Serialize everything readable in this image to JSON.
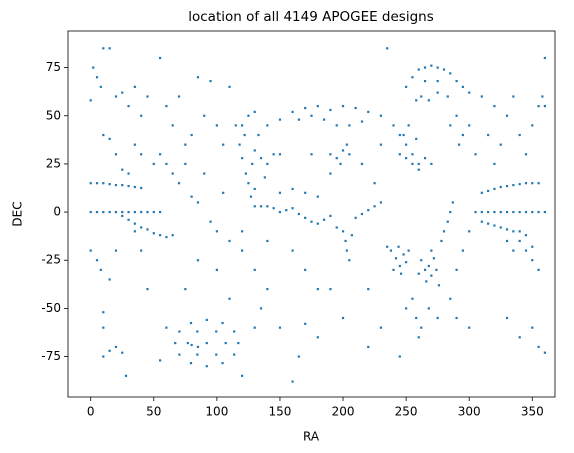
{
  "chart_data": {
    "type": "scatter",
    "title": "location of all 4149 APOGEE designs",
    "x_label": "RA",
    "y_label": "DEC",
    "color": "#1f77b4",
    "xlim": [
      -18,
      368
    ],
    "xticks": [
      0,
      50,
      100,
      150,
      200,
      250,
      300,
      350
    ],
    "ylim": [
      -96,
      94
    ],
    "yticks": [
      -75,
      -50,
      -25,
      0,
      25,
      50,
      75
    ],
    "x": [
      0,
      5,
      10,
      15,
      20,
      25,
      30,
      35,
      40,
      45,
      50,
      55,
      0,
      5,
      10,
      15,
      20,
      25,
      30,
      35,
      40,
      25,
      30,
      35,
      40,
      45,
      50,
      55,
      60,
      65,
      305,
      310,
      315,
      320,
      325,
      330,
      335,
      340,
      345,
      350,
      355,
      360,
      310,
      315,
      320,
      325,
      330,
      335,
      340,
      345,
      350,
      355,
      310,
      315,
      320,
      325,
      330,
      335,
      340,
      345,
      350,
      355,
      330,
      335,
      340,
      345,
      350,
      117,
      113.7,
      104.5,
      92,
      79.5,
      70.3,
      67,
      70.3,
      79.5,
      92,
      104.5,
      113.7,
      107,
      99.5,
      84.5,
      77,
      84.5,
      99.5,
      92,
      85,
      80,
      10,
      15,
      20,
      25,
      28,
      10,
      55,
      60,
      75,
      120,
      140,
      150,
      160,
      165,
      170,
      180,
      200,
      220,
      230,
      245,
      250,
      260,
      290,
      300,
      330,
      340,
      350,
      355,
      360,
      10,
      130,
      135,
      190,
      110,
      100,
      85,
      120,
      238,
      242,
      245,
      248,
      250,
      240,
      235,
      252,
      246,
      244,
      262,
      265,
      268,
      270,
      272,
      266,
      274,
      260,
      270,
      276,
      278,
      280,
      283,
      285,
      287,
      255,
      258,
      262,
      268,
      275,
      285,
      290,
      295,
      300,
      200,
      202,
      203,
      205,
      207,
      130,
      135,
      140,
      145,
      150,
      155,
      160,
      165,
      170,
      175,
      180,
      185,
      190,
      195,
      210,
      215,
      220,
      225,
      230,
      180,
      170,
      160,
      150,
      120,
      125,
      130,
      140,
      150,
      160,
      170,
      180,
      190,
      200,
      210,
      220,
      230,
      240,
      245,
      250,
      255,
      260,
      165,
      175,
      185,
      195,
      205,
      215,
      195,
      200,
      205,
      198,
      203,
      190,
      115,
      118,
      120,
      123,
      125,
      128,
      130,
      133,
      135,
      138,
      140,
      145,
      122,
      127,
      130,
      245,
      250,
      255,
      260,
      265,
      270,
      248,
      252,
      258,
      250,
      255,
      260,
      265,
      270,
      275,
      280,
      285,
      290,
      295,
      300,
      262,
      268,
      275,
      283,
      265,
      275,
      258,
      285,
      290,
      295,
      300,
      292,
      310,
      320,
      330,
      335,
      340,
      345,
      350,
      355,
      358,
      360,
      315,
      325,
      305,
      320,
      360,
      0,
      2,
      5,
      8,
      10,
      15,
      20,
      25,
      30,
      35,
      40,
      45,
      55,
      60,
      65,
      70,
      75,
      80,
      85,
      90,
      95,
      100,
      105,
      110,
      10,
      15,
      20,
      25,
      30,
      35,
      40,
      50,
      55,
      60,
      65,
      70,
      75,
      80,
      85,
      90,
      95,
      100,
      105,
      110,
      45,
      0,
      5,
      8,
      15,
      20,
      40,
      35,
      235,
      190,
      215,
      225,
      175,
      230,
      150,
      160,
      170,
      180,
      140,
      120,
      130,
      220
    ],
    "values": [
      0,
      0,
      0,
      0,
      0,
      0,
      0,
      0,
      0,
      0,
      0,
      0,
      15,
      15,
      15,
      14.5,
      14,
      14,
      13.5,
      13,
      12.5,
      -2,
      -4,
      -6,
      -8,
      -9,
      -11,
      -12,
      -13,
      -12,
      0,
      0,
      0,
      0,
      0,
      0,
      0,
      0,
      0,
      0,
      0,
      0,
      10,
      11,
      12,
      13,
      13.5,
      14,
      14.5,
      15,
      15,
      15,
      -5,
      -6,
      -7,
      -8,
      -9,
      -10,
      -15,
      -20,
      -25,
      -30,
      -15,
      -20,
      -10,
      -12,
      -18,
      -68,
      -62,
      -57.6,
      -56,
      -57.6,
      -62,
      -68,
      -74,
      -78.4,
      -80,
      -78.4,
      -74,
      -68,
      -62,
      -62,
      -68,
      -74,
      -74,
      -68,
      -70,
      -69,
      -75,
      -72,
      -70,
      -73,
      -85,
      -52,
      -77,
      -60,
      -40,
      -85,
      -40,
      -60,
      -88,
      -75,
      -58,
      -65,
      -55,
      -70,
      -60,
      -75,
      -50,
      -65,
      -55,
      -60,
      -55,
      -65,
      -60,
      -70,
      -73,
      -60,
      -30,
      -50,
      -40,
      -45,
      -30,
      -25,
      -20,
      -20,
      -24,
      -28,
      -22,
      -26,
      -30,
      -18,
      -20,
      -32,
      -18,
      -25,
      -30,
      -28,
      -33,
      -24,
      -36,
      -30,
      -32,
      -20,
      -38,
      -15,
      -10,
      -5,
      0,
      5,
      -45,
      -55,
      -60,
      -50,
      -55,
      -45,
      -30,
      -20,
      -10,
      -10,
      -15,
      -20,
      -25,
      -12,
      3,
      3,
      3,
      2,
      0,
      1,
      2,
      -1,
      -3,
      -5,
      -6,
      -4,
      -2,
      -8,
      -3,
      -1,
      1,
      3,
      5,
      8,
      10,
      12,
      10,
      45,
      50,
      52,
      45,
      48,
      52,
      54,
      55,
      53,
      55,
      54,
      52,
      50,
      45,
      40,
      35,
      30,
      25,
      48,
      50,
      48,
      45,
      45,
      47,
      28,
      32,
      30,
      25,
      35,
      30,
      45,
      35,
      28,
      20,
      15,
      25,
      32,
      40,
      28,
      18,
      25,
      30,
      40,
      8,
      12,
      30,
      28,
      25,
      22,
      28,
      25,
      40,
      45,
      38,
      65,
      70,
      74,
      75,
      76,
      75,
      74,
      72,
      68,
      65,
      62,
      60,
      58,
      62,
      60,
      68,
      68,
      58,
      45,
      50,
      40,
      45,
      35,
      60,
      55,
      50,
      60,
      40,
      30,
      45,
      55,
      60,
      55,
      40,
      35,
      30,
      25,
      80,
      58,
      75,
      70,
      65,
      85,
      85,
      60,
      62,
      55,
      65,
      50,
      60,
      80,
      55,
      45,
      60,
      35,
      40,
      70,
      50,
      68,
      45,
      35,
      65,
      40,
      38,
      30,
      22,
      20,
      35,
      30,
      25,
      30,
      25,
      20,
      15,
      25,
      8,
      5,
      20,
      -5,
      -10,
      10,
      -15,
      -40,
      -20,
      -25,
      -30,
      -35,
      -20,
      -20,
      -10,
      85,
      20,
      25,
      15,
      30,
      35,
      30,
      -20,
      -30,
      -40,
      -15,
      -10,
      -60,
      -40
    ]
  }
}
